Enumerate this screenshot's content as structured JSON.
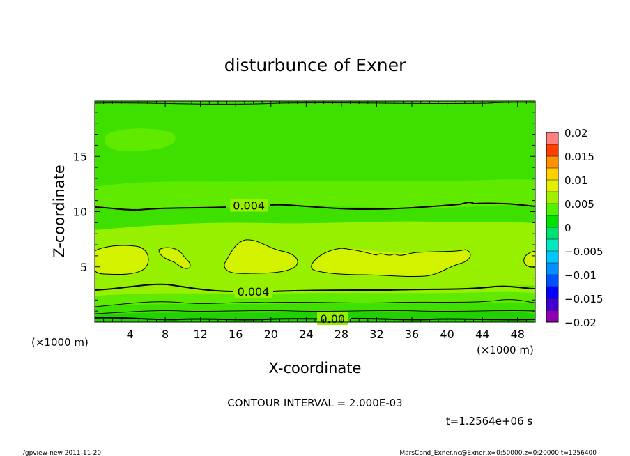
{
  "chart_data": {
    "type": "contour",
    "title": "disturbunce of Exner",
    "xlabel": "X-coordinate",
    "ylabel": "Z-coordinate",
    "x_unit_left": "(×1000 m)",
    "x_unit_right": "(×1000 m)",
    "xlim": [
      0,
      50
    ],
    "ylim": [
      0,
      20
    ],
    "xticks": [
      4,
      8,
      12,
      16,
      20,
      24,
      28,
      32,
      36,
      40,
      44,
      48
    ],
    "yticks": [
      5,
      10,
      15
    ],
    "contour_interval_text": "CONTOUR INTERVAL = 2.000E-03",
    "time_text": "t=1.2564e+06 s",
    "contour_labels": [
      {
        "text": "0.004",
        "x": 17.5,
        "z": 10.5
      },
      {
        "text": "0.004",
        "x": 18,
        "z": 2.7
      },
      {
        "text": "0.00",
        "x": 27,
        "z": 0.25
      }
    ],
    "colorbar": {
      "levels": [
        -0.02,
        -0.0175,
        -0.015,
        -0.0125,
        -0.01,
        -0.0075,
        -0.005,
        -0.0025,
        0,
        0.0025,
        0.005,
        0.0075,
        0.01,
        0.0125,
        0.015,
        0.0175,
        0.02
      ],
      "tick_labels": [
        "0.02",
        "0.015",
        "0.01",
        "0.005",
        "0",
        "−0.005",
        "−0.01",
        "−0.015",
        "−0.02"
      ],
      "colors": [
        "#8b00b0",
        "#4000d0",
        "#0000ff",
        "#0050ff",
        "#0090ff",
        "#00c8ff",
        "#00e8c0",
        "#00e070",
        "#00e000",
        "#50f000",
        "#a0f000",
        "#e0f000",
        "#ffd000",
        "#ff9000",
        "#ff4000",
        "#ff8080"
      ]
    }
  },
  "footer": {
    "left": "./gpview-new   2011-11-20",
    "right": "MarsCond_Exner.nc@Exner,x=0:50000,z=0:20000,t=1256400"
  },
  "colors": {
    "band_dark_green": "#22d200",
    "band_green": "#3ee000",
    "band_mid": "#60ea00",
    "band_light": "#96f000",
    "band_yellow": "#d2f200"
  }
}
